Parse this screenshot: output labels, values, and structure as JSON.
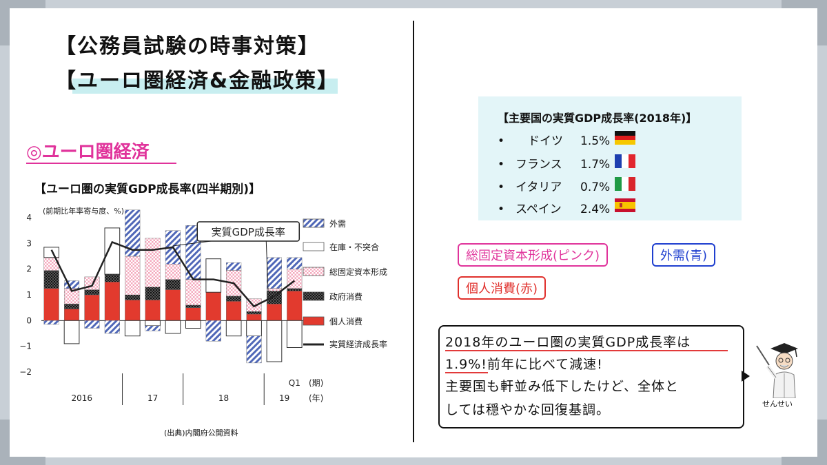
{
  "header": {
    "title_line1": "【公務員試験の時事対策】",
    "title_line2": "【ユーロ圏経済&金融政策】"
  },
  "section": {
    "heading": "◎ユーロ圏経済"
  },
  "chart_data": {
    "type": "bar",
    "title": "【ユーロ圏の実質GDP成長率(四半期別)】",
    "ylabel": "(前期比年率寄与度、%)",
    "ylim": [
      -2,
      4
    ],
    "yticks": [
      "4",
      "3",
      "2",
      "1",
      "0",
      "−1",
      "−2"
    ],
    "categories": [
      "2016Q1",
      "2016Q2",
      "2016Q3",
      "2016Q4",
      "2017Q1",
      "2017Q2",
      "2017Q3",
      "2017Q4",
      "2018Q1",
      "2018Q2",
      "2018Q3",
      "2018Q4",
      "2019Q1"
    ],
    "year_labels": [
      {
        "label": "2016"
      },
      {
        "label": "17"
      },
      {
        "label": "18"
      },
      {
        "label": "19"
      }
    ],
    "q_marker": "Q1",
    "period_label": "(期)",
    "year_unit_label": "(年)",
    "annotation": "実質GDP成長率",
    "series": [
      {
        "name": "個人消費",
        "color": "#e23a2e",
        "values": [
          1.25,
          0.45,
          1.0,
          1.5,
          0.8,
          0.8,
          1.2,
          0.5,
          1.1,
          0.75,
          0.25,
          0.65,
          1.15
        ]
      },
      {
        "name": "政府消費",
        "color": "#222222",
        "values": [
          0.7,
          0.2,
          0.2,
          0.3,
          0.2,
          0.5,
          0.4,
          0.1,
          0.0,
          0.2,
          0.1,
          0.5,
          0.1
        ]
      },
      {
        "name": "総固定資本形成",
        "color": "#f4a9bd",
        "values": [
          0.5,
          0.6,
          0.5,
          0.0,
          1.5,
          1.9,
          0.6,
          1.0,
          0.0,
          1.0,
          0.5,
          0.1,
          0.75
        ]
      },
      {
        "name": "在庫・不突合",
        "color": "#ffffff",
        "values": [
          0.4,
          -0.9,
          0.0,
          1.8,
          -0.6,
          -0.2,
          -0.5,
          -0.3,
          1.3,
          -0.6,
          -0.6,
          -1.6,
          -1.05
        ]
      },
      {
        "name": "外需",
        "color": "#5068b8",
        "values": [
          -0.15,
          0.3,
          -0.3,
          -0.5,
          1.8,
          -0.2,
          1.3,
          2.1,
          -0.8,
          0.3,
          -1.05,
          1.2,
          0.45
        ]
      }
    ],
    "line": {
      "name": "実質経済成長率",
      "color": "#222222",
      "values": [
        2.75,
        1.15,
        1.35,
        3.05,
        2.75,
        2.75,
        2.85,
        1.6,
        1.6,
        1.45,
        0.55,
        0.95,
        1.55
      ]
    }
  },
  "source": "(出典)内閣府公開資料",
  "info_box": {
    "title": "【主要国の実質GDP成長率(2018年)】",
    "bullet": "•",
    "rows": [
      {
        "name": "ドイツ",
        "value": "1.5%",
        "flag": "germany-flag"
      },
      {
        "name": "フランス",
        "value": "1.7%",
        "flag": "france-flag"
      },
      {
        "name": "イタリア",
        "value": "0.7%",
        "flag": "italy-flag"
      },
      {
        "name": "スペイン",
        "value": "2.4%",
        "flag": "spain-flag"
      }
    ]
  },
  "tags": {
    "capital": "総固定資本形成(ピンク)",
    "external": "外需(青)",
    "consumption": "個人消費(赤)"
  },
  "speech": {
    "line1": "2018年のユーロ圏の実質GDP成長率は",
    "line2": "1.9%!前年に比べて減速!",
    "line3": "主要国も軒並み低下したけど、全体と",
    "line4": "しては穏やかな回復基調。"
  },
  "character": {
    "label": "せんせい"
  },
  "colors": {
    "pink": "#e0339b",
    "blue": "#1f3fcf",
    "red": "#e0302c",
    "highlight": "#c8eef0",
    "panel": "#e3f5f8"
  }
}
